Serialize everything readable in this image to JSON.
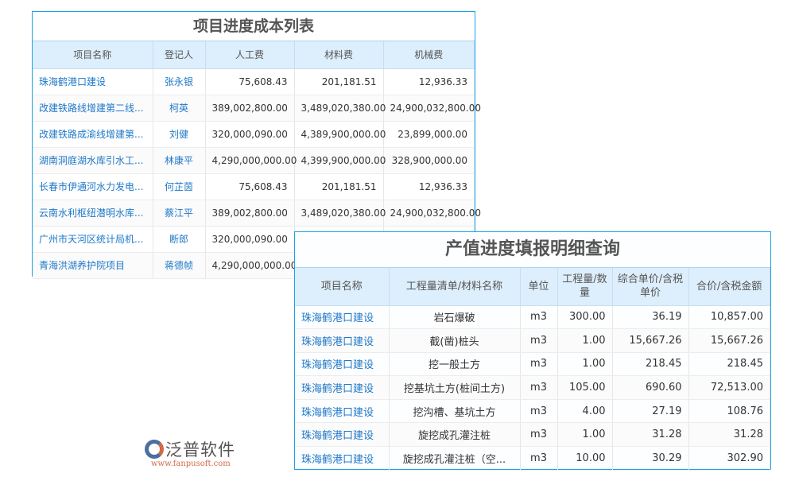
{
  "cost_table": {
    "title": "项目进度成本列表",
    "headers": [
      "项目名称",
      "登记人",
      "人工费",
      "材料费",
      "机械费"
    ],
    "rows": [
      [
        "珠海鹤港口建设",
        "张永银",
        "75,608.43",
        "201,181.51",
        "12,936.33"
      ],
      [
        "改建铁路线增建第二线...",
        "柯英",
        "389,002,800.00",
        "3,489,020,380.00",
        "24,900,032,800.00"
      ],
      [
        "改建铁路成渝线增建第...",
        "刘健",
        "320,000,090.00",
        "4,389,900,000.00",
        "23,899,000.00"
      ],
      [
        "湖南洞庭湖水库引水工...",
        "林康平",
        "4,290,000,000.00",
        "4,399,900,000.00",
        "328,900,000.00"
      ],
      [
        "长春市伊通河水力发电...",
        "何芷茵",
        "75,608.43",
        "201,181.51",
        "12,936.33"
      ],
      [
        "云南水利枢纽潜明水库...",
        "蔡江平",
        "389,002,800.00",
        "3,489,020,380.00",
        "24,900,032,800.00"
      ],
      [
        "广州市天河区统计局机...",
        "断郎",
        "320,000,090.00",
        "",
        ""
      ],
      [
        "青海洪湖养护院项目",
        "蒋德帧",
        "4,290,000,000.00",
        "",
        ""
      ]
    ]
  },
  "output_table": {
    "title": "产值进度填报明细查询",
    "headers": [
      "项目名称",
      "工程量清单/材料名称",
      "单位",
      "工程量/数量",
      "综合单价/含税单价",
      "合价/含税金额"
    ],
    "rows": [
      [
        "珠海鹤港口建设",
        "岩石爆破",
        "m3",
        "300.00",
        "36.19",
        "10,857.00"
      ],
      [
        "珠海鹤港口建设",
        "截(凿)桩头",
        "m3",
        "1.00",
        "15,667.26",
        "15,667.26"
      ],
      [
        "珠海鹤港口建设",
        "挖一般土方",
        "m3",
        "1.00",
        "218.45",
        "218.45"
      ],
      [
        "珠海鹤港口建设",
        "挖基坑土方(桩间土方)",
        "m3",
        "105.00",
        "690.60",
        "72,513.00"
      ],
      [
        "珠海鹤港口建设",
        "挖沟槽、基坑土方",
        "m3",
        "4.00",
        "27.19",
        "108.76"
      ],
      [
        "珠海鹤港口建设",
        "旋挖成孔灌注桩",
        "m3",
        "1.00",
        "31.28",
        "31.28"
      ],
      [
        "珠海鹤港口建设",
        "旋挖成孔灌注桩（空...",
        "m3",
        "10.00",
        "30.29",
        "302.90"
      ]
    ]
  },
  "watermark": {
    "brand": "泛普软件",
    "url": "www.fanpusoft.com"
  }
}
